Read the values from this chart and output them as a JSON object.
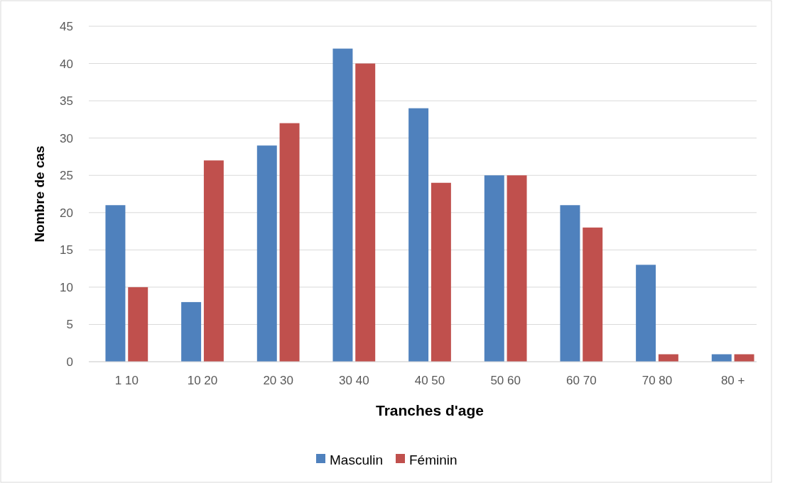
{
  "chart_data": {
    "type": "bar",
    "xlabel": "Tranches d'age",
    "ylabel": "Nombre de cas",
    "categories": [
      "1 10",
      "10 20",
      "20 30",
      "30 40",
      "40 50",
      "50 60",
      "60 70",
      "70 80",
      "80 +"
    ],
    "series": [
      {
        "name": "Masculin",
        "color": "#4f81bd",
        "values": [
          21,
          8,
          29,
          42,
          34,
          25,
          21,
          13,
          1
        ]
      },
      {
        "name": "Féminin",
        "color": "#c0504d",
        "values": [
          10,
          27,
          32,
          40,
          24,
          25,
          18,
          1,
          1
        ]
      }
    ],
    "ylim": [
      0,
      45
    ],
    "yticks": [
      0,
      5,
      10,
      15,
      20,
      25,
      30,
      35,
      40,
      45
    ],
    "grid": "y",
    "legend": "bottom"
  }
}
